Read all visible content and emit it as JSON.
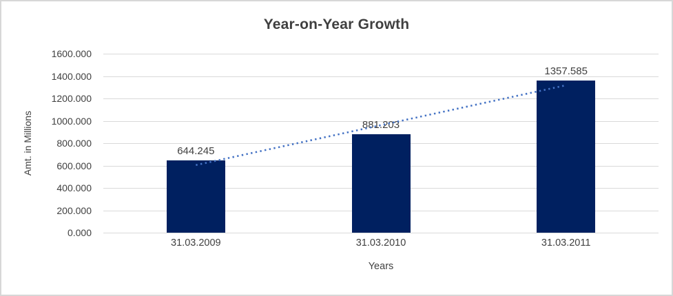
{
  "chart_data": {
    "type": "bar",
    "title": "Year-on-Year Growth",
    "xlabel": "Years",
    "ylabel": "Amt. in Millions",
    "categories": [
      "31.03.2009",
      "31.03.2010",
      "31.03.2011"
    ],
    "values": [
      644.245,
      881.203,
      1357.585
    ],
    "data_labels": [
      "644.245",
      "881.203",
      "1357.585"
    ],
    "ylim": [
      0,
      1600
    ],
    "y_tick_step": 200,
    "y_tick_labels": [
      "1600.000",
      "1400.000",
      "1200.000",
      "1000.000",
      "800.000",
      "600.000",
      "400.000",
      "200.000",
      "0.000"
    ],
    "grid": true,
    "legend": "none",
    "trendline": {
      "kind": "linear",
      "style": "dotted"
    },
    "colors": {
      "bar": "#002060",
      "trendline": "#4472c4",
      "gridline": "#d9d9d9",
      "axis_line": "#d9d9d9",
      "title_text": "#3f3f3f",
      "axis_text": "#404040",
      "background": "#ffffff",
      "border": "#d7d7d7"
    }
  }
}
